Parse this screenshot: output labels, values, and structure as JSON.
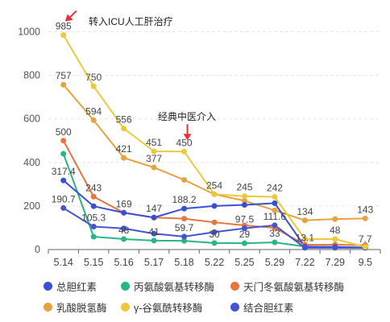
{
  "chart_data": {
    "type": "line",
    "categories": [
      "5.14",
      "5.15",
      "5.16",
      "5.17",
      "5.18",
      "5.22",
      "5.25",
      "5.29",
      "7.22",
      "7.29",
      "9.5"
    ],
    "ylim": [
      0,
      1050
    ],
    "yticks": [
      0,
      200,
      400,
      600,
      800,
      1000
    ],
    "grid": true,
    "legend_position": "bottom",
    "series": [
      {
        "name": "总胆红素",
        "color": "#3b4fd0",
        "values": [
          317.4,
          199,
          169,
          147,
          188.2,
          200,
          205,
          213,
          13.1,
          12,
          7.7
        ],
        "labels": [
          "317.4",
          "",
          "169",
          "147",
          "188.2",
          "",
          "",
          "",
          "13.1",
          "",
          "7.7"
        ]
      },
      {
        "name": "丙氨酸氨基转移酶",
        "color": "#2ab585",
        "values": [
          440,
          59,
          48,
          41,
          40,
          30,
          29,
          33,
          14,
          12,
          10
        ],
        "labels": [
          "",
          "",
          "48",
          "41",
          "",
          "30",
          "29",
          "33",
          "",
          "",
          ""
        ]
      },
      {
        "name": "天门冬氨酸氨基转移酶",
        "color": "#e8763c",
        "values": [
          500,
          243,
          169,
          147,
          142,
          125,
          111,
          100,
          22,
          22,
          20
        ],
        "labels": [
          "500",
          "243",
          "",
          "",
          "",
          "",
          "",
          "",
          "",
          "",
          ""
        ]
      },
      {
        "name": "乳酸脱氢酶",
        "color": "#e8a23e",
        "values": [
          757,
          594,
          421,
          377,
          320,
          254,
          224,
          180,
          134,
          140,
          143
        ],
        "labels": [
          "757",
          "594",
          "421",
          "377",
          "",
          "",
          "",
          "",
          "134",
          "",
          "143"
        ]
      },
      {
        "name": "γ-谷氨酰转移酶",
        "color": "#ecc93c",
        "values": [
          985,
          750,
          556,
          451,
          450,
          254,
          245,
          242,
          48,
          48,
          12
        ],
        "labels": [
          "985",
          "750",
          "556",
          "451",
          "450",
          "254",
          "245",
          "242",
          "",
          "48",
          ""
        ]
      },
      {
        "name": "结合胆红素",
        "color": "#4555cf",
        "values": [
          190.7,
          105.3,
          97,
          73,
          59.7,
          80,
          97.5,
          111.6,
          8,
          8,
          8
        ],
        "labels": [
          "190.7",
          "105.3",
          "",
          "",
          "59.7",
          "",
          "97.5",
          "111.6",
          "",
          "",
          ""
        ]
      }
    ],
    "annotations": [
      {
        "text": "转入ICU人工肝治疗",
        "category_index": 0
      },
      {
        "text": "经典中医介入",
        "category_index": 4
      }
    ]
  },
  "legend": [
    {
      "label": "总胆红素",
      "color": "#3b4fd0"
    },
    {
      "label": "丙氨酸氨基转移酶",
      "color": "#2ab585"
    },
    {
      "label": "天门冬氨酸氨基转移酶",
      "color": "#e8763c"
    },
    {
      "label": "乳酸脱氢酶",
      "color": "#e8a23e"
    },
    {
      "label": "γ-谷氨酰转移酶",
      "color": "#ecc93c"
    },
    {
      "label": "结合胆红素",
      "color": "#4555cf"
    }
  ]
}
